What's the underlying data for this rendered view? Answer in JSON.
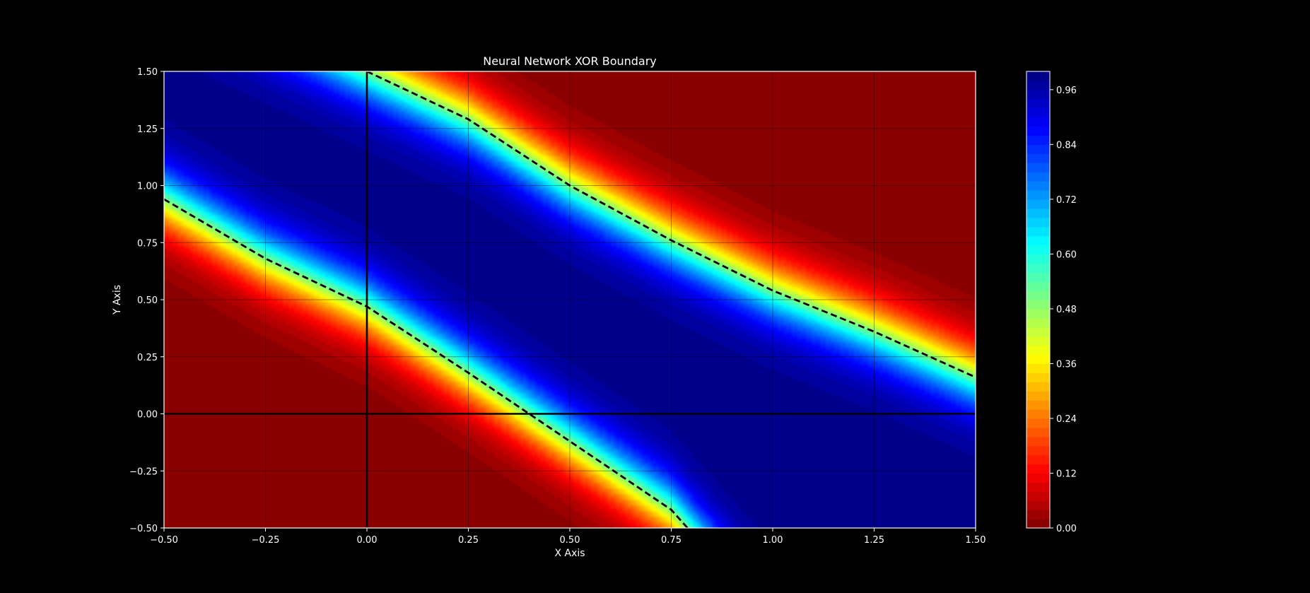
{
  "chart_data": {
    "type": "heatmap",
    "title": "Neural Network XOR Boundary",
    "xlabel": "X Axis",
    "ylabel": "Y Axis",
    "xlim": [
      -0.5,
      1.5
    ],
    "ylim": [
      -0.5,
      1.5
    ],
    "x_ticks": [
      {
        "value": -0.5,
        "label": "−0.50"
      },
      {
        "value": -0.25,
        "label": "−0.25"
      },
      {
        "value": 0.0,
        "label": "0.00"
      },
      {
        "value": 0.25,
        "label": "0.25"
      },
      {
        "value": 0.5,
        "label": "0.50"
      },
      {
        "value": 0.75,
        "label": "0.75"
      },
      {
        "value": 1.0,
        "label": "1.00"
      },
      {
        "value": 1.25,
        "label": "1.25"
      },
      {
        "value": 1.5,
        "label": "1.50"
      }
    ],
    "y_ticks": [
      {
        "value": -0.5,
        "label": "−0.50"
      },
      {
        "value": -0.25,
        "label": "−0.25"
      },
      {
        "value": 0.0,
        "label": "0.00"
      },
      {
        "value": 0.25,
        "label": "0.25"
      },
      {
        "value": 0.5,
        "label": "0.50"
      },
      {
        "value": 0.75,
        "label": "0.75"
      },
      {
        "value": 1.0,
        "label": "1.00"
      },
      {
        "value": 1.25,
        "label": "1.25"
      },
      {
        "value": 1.5,
        "label": "1.50"
      }
    ],
    "grid": true,
    "colormap": "jet_r",
    "colorbar": {
      "range": [
        0.0,
        1.0
      ],
      "ticks": [
        {
          "value": 0.0,
          "label": "0.00"
        },
        {
          "value": 0.12,
          "label": "0.12"
        },
        {
          "value": 0.24,
          "label": "0.24"
        },
        {
          "value": 0.36,
          "label": "0.36"
        },
        {
          "value": 0.48,
          "label": "0.48"
        },
        {
          "value": 0.6,
          "label": "0.60"
        },
        {
          "value": 0.72,
          "label": "0.72"
        },
        {
          "value": 0.84,
          "label": "0.84"
        },
        {
          "value": 0.96,
          "label": "0.96"
        }
      ]
    },
    "decision_boundary_level": 0.5,
    "boundaries": [
      {
        "name": "lower",
        "points": [
          [
            -0.5,
            0.94
          ],
          [
            -0.25,
            0.68
          ],
          [
            0.0,
            0.47
          ],
          [
            0.25,
            0.18
          ],
          [
            0.5,
            -0.12
          ],
          [
            0.75,
            -0.42
          ],
          [
            0.79,
            -0.5
          ]
        ]
      },
      {
        "name": "upper",
        "points": [
          [
            0.0,
            1.5
          ],
          [
            0.25,
            1.29
          ],
          [
            0.5,
            1.0
          ],
          [
            0.75,
            0.76
          ],
          [
            1.0,
            0.54
          ],
          [
            1.25,
            0.36
          ],
          [
            1.5,
            0.16
          ]
        ]
      }
    ],
    "reference_lines": {
      "x": 0.0,
      "y": 0.0
    }
  },
  "colors": {
    "background": "#000000",
    "text": "#ffffff",
    "boundary": "#000000",
    "grid": "#000000"
  }
}
